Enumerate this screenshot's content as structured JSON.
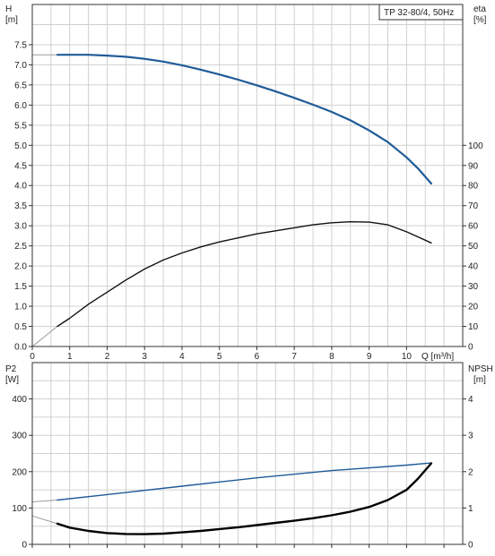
{
  "chart_data": [
    {
      "type": "line",
      "title": "TP 32-80/4, 50Hz",
      "xlabel": "Q [m³/h]",
      "left_axis": {
        "label_line1": "H",
        "label_line2": "[m]",
        "ticks": [
          "0.0",
          "0.5",
          "1.0",
          "1.5",
          "2.0",
          "2.5",
          "3.0",
          "3.5",
          "4.0",
          "4.5",
          "5.0",
          "5.5",
          "6.0",
          "6.5",
          "7.0",
          "7.5"
        ],
        "ylim": [
          0,
          8.5
        ]
      },
      "right_axis": {
        "label_line1": "eta",
        "label_line2": "[%]",
        "ticks": [
          "0",
          "10",
          "20",
          "30",
          "40",
          "50",
          "60",
          "70",
          "80",
          "90",
          "100"
        ],
        "ylim": [
          0,
          170
        ]
      },
      "x_ticks": [
        "0",
        "1",
        "2",
        "3",
        "4",
        "5",
        "6",
        "7",
        "8",
        "9",
        "10"
      ],
      "xlim": [
        0,
        11.5
      ],
      "grid": true,
      "series": [
        {
          "axis": "left",
          "color": "#1f5b99",
          "ext": [
            [
              0,
              7.25
            ],
            [
              0.67,
              7.25
            ]
          ],
          "x": [
            0.67,
            1,
            1.5,
            2,
            2.5,
            3,
            3.5,
            4,
            4.5,
            5,
            5.5,
            6,
            6.5,
            7,
            7.5,
            8,
            8.5,
            9,
            9.5,
            10,
            10.3,
            10.66
          ],
          "y": [
            7.25,
            7.25,
            7.25,
            7.23,
            7.2,
            7.15,
            7.08,
            6.99,
            6.88,
            6.76,
            6.63,
            6.49,
            6.34,
            6.18,
            6.01,
            5.83,
            5.62,
            5.37,
            5.08,
            4.7,
            4.43,
            4.05
          ]
        },
        {
          "axis": "right",
          "color": "#111111",
          "ext": [
            [
              0,
              0
            ],
            [
              0.67,
              10
            ]
          ],
          "x": [
            0.67,
            1,
            1.5,
            2,
            2.5,
            3,
            3.5,
            4,
            4.5,
            5,
            5.5,
            6,
            6.5,
            7,
            7.5,
            8,
            8.5,
            9,
            9.5,
            10,
            10.3,
            10.66
          ],
          "y": [
            10,
            14,
            21,
            27,
            33,
            38.5,
            43,
            46.5,
            49.5,
            52,
            54,
            56,
            57.5,
            59,
            60.5,
            61.5,
            62,
            61.8,
            60.5,
            57,
            54.5,
            51.5
          ]
        }
      ]
    },
    {
      "type": "line",
      "left_axis": {
        "label_line1": "P2",
        "label_line2": "[W]",
        "ticks": [
          "0",
          "100",
          "200",
          "300",
          "400"
        ],
        "ylim": [
          0,
          500
        ]
      },
      "right_axis": {
        "label_line1": "NPSH",
        "label_line2": "[m]",
        "ticks": [
          "0",
          "1",
          "2",
          "3",
          "4"
        ],
        "ylim": [
          0,
          5
        ]
      },
      "xlim": [
        0,
        11.5
      ],
      "grid": true,
      "series": [
        {
          "axis": "left",
          "color": "#1f5b99",
          "ext": [
            [
              0,
              117
            ],
            [
              0.67,
              122
            ]
          ],
          "x": [
            0.67,
            2,
            4,
            6,
            8,
            10,
            10.66
          ],
          "y": [
            122,
            137,
            160,
            183,
            203,
            218,
            224
          ]
        },
        {
          "axis": "left",
          "color": "#000000",
          "bold": true,
          "ext": [
            [
              0,
              78
            ],
            [
              0.67,
              57
            ]
          ],
          "x": [
            0.67,
            1,
            1.5,
            2,
            2.5,
            3,
            3.5,
            4,
            4.5,
            5,
            5.5,
            6,
            6.5,
            7,
            7.5,
            8,
            8.5,
            9,
            9.5,
            10,
            10.3,
            10.66
          ],
          "y": [
            57,
            46,
            37,
            31,
            28.5,
            28,
            29.5,
            33,
            37,
            42,
            47,
            53,
            59,
            65,
            72,
            80,
            90,
            103,
            122,
            150,
            180,
            223
          ]
        }
      ]
    }
  ]
}
